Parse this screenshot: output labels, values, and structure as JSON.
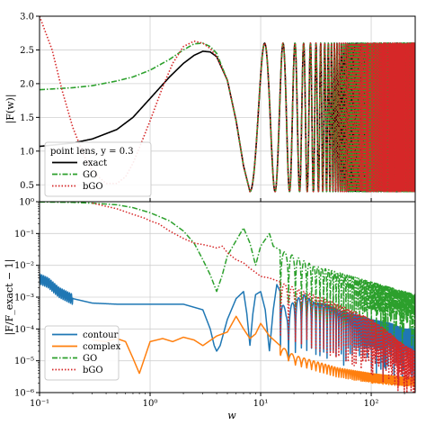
{
  "chart_data": [
    {
      "type": "line",
      "ylabel": "|F(w)|",
      "xscale": "log",
      "xlim": [
        0.1,
        250
      ],
      "ylim": [
        0.25,
        3.0
      ],
      "yticks": [
        0.5,
        1.0,
        1.5,
        2.0,
        2.5,
        3.0
      ],
      "ytick_labels": [
        "0.5",
        "1.0",
        "1.5",
        "2.0",
        "2.5",
        "3.0"
      ],
      "grid": true,
      "legend": {
        "placement": "bottom-left",
        "title": "point lens,    y = 0.3",
        "entries": [
          {
            "label": "exact",
            "color": "#000000",
            "dash": "solid"
          },
          {
            "label": "GO",
            "color": "#2ca02c",
            "dash": "dashdot"
          },
          {
            "label": "bGO",
            "color": "#d62728",
            "dash": "dotted"
          }
        ]
      },
      "series": [
        {
          "name": "exact",
          "color": "#000000",
          "x": [
            0.1,
            0.2,
            0.3,
            0.5,
            0.7,
            1.0,
            1.5,
            2.0,
            2.5,
            3.0,
            3.5,
            4.0,
            5.0,
            6.0,
            7.0,
            8.0,
            9.0,
            10.0,
            12.0,
            15.0,
            20.0
          ],
          "y": [
            1.07,
            1.12,
            1.18,
            1.32,
            1.5,
            1.78,
            2.1,
            2.3,
            2.42,
            2.48,
            2.47,
            2.4,
            2.05,
            1.45,
            0.78,
            0.4,
            0.6,
            1.2,
            2.3,
            2.55,
            2.58
          ]
        },
        {
          "name": "GO",
          "color": "#2ca02c",
          "x": [
            0.1,
            0.2,
            0.3,
            0.5,
            0.7,
            1.0,
            1.5,
            2.0,
            2.5,
            3.0,
            3.5,
            4.0,
            5.0,
            6.0,
            7.0,
            8.0,
            9.0,
            10.0,
            12.0,
            15.0,
            20.0
          ],
          "y": [
            1.91,
            1.94,
            1.97,
            2.04,
            2.1,
            2.2,
            2.36,
            2.5,
            2.59,
            2.6,
            2.55,
            2.45,
            2.05,
            1.45,
            0.78,
            0.4,
            0.6,
            1.2,
            2.3,
            2.55,
            2.58
          ]
        },
        {
          "name": "bGO",
          "color": "#d62728",
          "x": [
            0.1,
            0.13,
            0.16,
            0.2,
            0.25,
            0.3,
            0.4,
            0.5,
            0.6,
            0.7,
            0.8,
            1.0,
            1.3,
            1.6,
            2.0,
            2.5,
            3.0,
            3.5,
            4.0,
            5.0,
            6.0,
            7.0,
            8.0
          ],
          "y": [
            3.0,
            2.5,
            1.9,
            1.35,
            0.95,
            0.7,
            0.52,
            0.52,
            0.62,
            0.82,
            1.05,
            1.45,
            1.95,
            2.3,
            2.55,
            2.63,
            2.6,
            2.52,
            2.4,
            2.05,
            1.45,
            0.78,
            0.4
          ]
        }
      ],
      "oscillation_note_free": true
    },
    {
      "type": "line",
      "xlabel": "w",
      "ylabel": "|F/F_exact − 1|",
      "xscale": "log",
      "yscale": "log",
      "xlim": [
        0.1,
        250
      ],
      "ylim": [
        1e-06,
        1
      ],
      "xticks": [
        0.1,
        1,
        10,
        100
      ],
      "xtick_labels": [
        "10⁻¹",
        "10⁰",
        "10¹",
        "10²"
      ],
      "yticks": [
        1e-06,
        1e-05,
        0.0001,
        0.001,
        0.01,
        0.1,
        1
      ],
      "ytick_labels": [
        "10⁻⁶",
        "10⁻⁵",
        "10⁻⁴",
        "10⁻³",
        "10⁻²",
        "10⁻¹",
        "10⁰"
      ],
      "grid": true,
      "legend": {
        "placement": "bottom-left",
        "entries": [
          {
            "label": "contour",
            "color": "#1f77b4",
            "dash": "solid"
          },
          {
            "label": "complex",
            "color": "#ff7f0e",
            "dash": "solid"
          },
          {
            "label": "GO",
            "color": "#2ca02c",
            "dash": "dashdot"
          },
          {
            "label": "bGO",
            "color": "#d62728",
            "dash": "dotted"
          }
        ]
      },
      "series": [
        {
          "name": "contour",
          "color": "#1f77b4",
          "x": [
            0.1,
            0.12,
            0.15,
            0.2,
            0.3,
            0.5,
            1.0,
            2.0,
            3.0,
            3.5,
            3.8,
            4.0,
            4.3,
            5.0,
            6.0,
            7.0,
            7.5,
            8.0,
            8.5,
            9.0,
            10.0,
            11.0,
            12.0,
            13.0,
            14.0,
            15.0,
            17.0,
            20.0,
            25.0,
            30.0,
            40.0,
            50.0,
            70.0,
            100.0,
            150.0,
            200.0,
            250.0
          ],
          "y": [
            0.004,
            0.003,
            0.0015,
            0.0009,
            0.00065,
            0.0006,
            0.0006,
            0.0006,
            0.0004,
            0.0001,
            3e-05,
            2e-05,
            3e-05,
            0.0002,
            0.0009,
            0.0015,
            0.0003,
            3e-05,
            0.0003,
            0.0012,
            0.0015,
            0.0004,
            2e-05,
            0.0004,
            0.0025,
            0.0015,
            0.0003,
            0.0008,
            0.0012,
            0.0007,
            0.0006,
            0.0004,
            0.0003,
            0.0002,
            0.00015,
            0.0001,
            0.0001
          ]
        },
        {
          "name": "complex",
          "color": "#ff7f0e",
          "x": [
            0.3,
            0.4,
            0.5,
            0.6,
            0.7,
            0.8,
            1.0,
            1.3,
            1.6,
            2.0,
            2.5,
            3.0,
            4.0,
            5.0,
            6.0,
            7.0,
            8.0,
            9.0,
            10.0,
            12.0,
            15.0,
            20.0,
            30.0,
            50.0,
            100.0,
            200.0,
            250.0
          ],
          "y": [
            4.5e-05,
            4e-05,
            5e-05,
            4e-05,
            1.2e-05,
            4e-06,
            4e-05,
            5e-05,
            4e-05,
            5.5e-05,
            4.5e-05,
            3e-05,
            6e-05,
            8e-05,
            0.00025,
            0.0001,
            5e-05,
            7e-05,
            0.00015,
            6e-05,
            3e-05,
            1.5e-05,
            1e-05,
            6e-06,
            4e-06,
            3e-06,
            3e-06
          ]
        },
        {
          "name": "GO",
          "color": "#2ca02c",
          "x": [
            0.1,
            0.2,
            0.3,
            0.5,
            0.7,
            1.0,
            1.5,
            2.0,
            2.5,
            3.0,
            3.5,
            4.0,
            4.5,
            5.0,
            6.0,
            7.0,
            8.0,
            9.0,
            10.0,
            12.0,
            13.0,
            15.0,
            20.0,
            30.0,
            50.0,
            100.0,
            200.0,
            250.0
          ],
          "y": [
            0.98,
            0.95,
            0.9,
            0.8,
            0.65,
            0.45,
            0.25,
            0.12,
            0.05,
            0.015,
            0.005,
            0.0015,
            0.005,
            0.02,
            0.06,
            0.15,
            0.05,
            0.01,
            0.04,
            0.1,
            0.04,
            0.03,
            0.02,
            0.01,
            0.006,
            0.003,
            0.0015,
            0.0012
          ]
        },
        {
          "name": "bGO",
          "color": "#d62728",
          "x": [
            0.3,
            0.5,
            0.7,
            0.9,
            1.0,
            1.2,
            1.5,
            2.0,
            2.5,
            3.0,
            3.5,
            4.0,
            4.5,
            5.0,
            6.0,
            7.0,
            8.0,
            9.0,
            10.0,
            12.0,
            15.0,
            20.0,
            30.0,
            50.0,
            100.0,
            150.0,
            200.0,
            250.0
          ],
          "y": [
            0.9,
            0.6,
            0.4,
            0.3,
            0.25,
            0.2,
            0.12,
            0.07,
            0.05,
            0.045,
            0.04,
            0.035,
            0.04,
            0.025,
            0.015,
            0.012,
            0.008,
            0.006,
            0.0045,
            0.004,
            0.003,
            0.002,
            0.0012,
            0.0006,
            0.0002,
            7e-05,
            3e-05,
            2e-05
          ]
        }
      ]
    }
  ]
}
